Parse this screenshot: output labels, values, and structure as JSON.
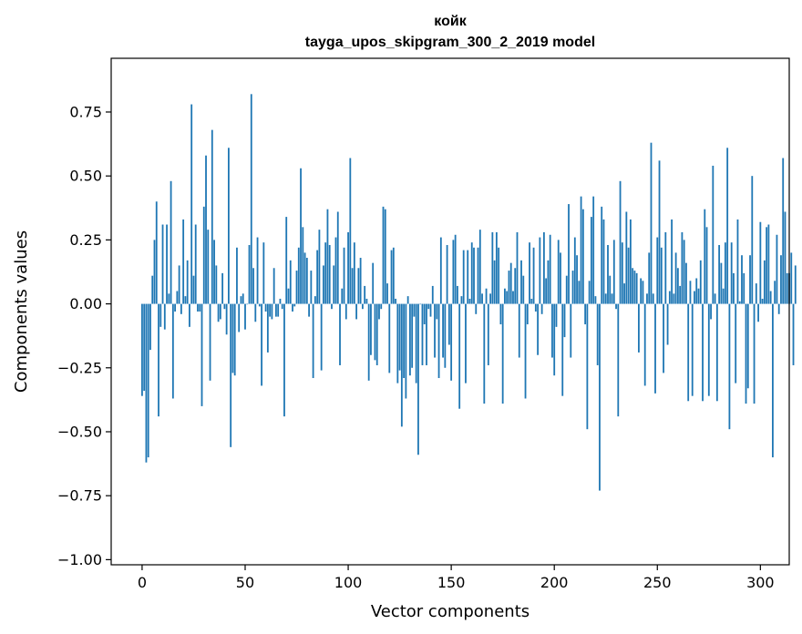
{
  "chart_data": {
    "type": "bar",
    "title": "койк",
    "subtitle": "tayga_upos_skipgram_300_2_2019 model",
    "xlabel": "Vector components",
    "ylabel": "Components values",
    "xlim": [
      -15,
      314
    ],
    "ylim": [
      -1.02,
      0.96
    ],
    "xticks": [
      0,
      50,
      100,
      150,
      200,
      250,
      300
    ],
    "xtick_labels": [
      "0",
      "50",
      "100",
      "150",
      "200",
      "250",
      "300"
    ],
    "yticks": [
      -1.0,
      -0.75,
      -0.5,
      -0.25,
      0.0,
      0.25,
      0.5,
      0.75
    ],
    "ytick_labels": [
      "−1.00",
      "−0.75",
      "−0.50",
      "−0.25",
      "0.00",
      "0.25",
      "0.50",
      "0.75"
    ],
    "grid": false,
    "bar_color": "#1f77b4",
    "values": [
      -0.36,
      -0.34,
      -0.62,
      -0.6,
      -0.18,
      0.11,
      0.25,
      0.4,
      -0.44,
      -0.09,
      0.31,
      -0.1,
      0.31,
      0.04,
      0.48,
      -0.37,
      -0.03,
      0.05,
      0.15,
      -0.04,
      0.33,
      0.03,
      0.17,
      -0.09,
      0.78,
      0.11,
      0.31,
      -0.03,
      -0.03,
      -0.4,
      0.38,
      0.58,
      0.29,
      -0.3,
      0.68,
      0.25,
      0.15,
      -0.07,
      -0.06,
      0.12,
      -0.02,
      -0.12,
      0.61,
      -0.56,
      -0.27,
      -0.28,
      0.22,
      -0.11,
      0.03,
      0.04,
      -0.1,
      0.0,
      0.23,
      0.82,
      0.14,
      -0.07,
      0.26,
      -0.01,
      -0.32,
      0.24,
      -0.03,
      -0.19,
      -0.05,
      -0.06,
      0.14,
      -0.05,
      -0.05,
      0.02,
      -0.02,
      -0.44,
      0.34,
      0.06,
      0.17,
      -0.03,
      -0.01,
      0.13,
      0.22,
      0.53,
      0.3,
      0.2,
      0.18,
      -0.05,
      0.13,
      -0.29,
      0.03,
      0.21,
      0.29,
      -0.26,
      0.15,
      0.24,
      0.37,
      0.23,
      -0.02,
      0.15,
      0.26,
      0.36,
      -0.24,
      0.06,
      0.22,
      -0.06,
      0.28,
      0.57,
      0.14,
      0.24,
      -0.06,
      0.14,
      0.18,
      -0.02,
      0.07,
      0.02,
      -0.3,
      -0.2,
      0.16,
      -0.22,
      -0.24,
      -0.06,
      -0.02,
      0.38,
      0.37,
      0.08,
      -0.27,
      0.21,
      0.22,
      0.02,
      -0.31,
      -0.26,
      -0.48,
      -0.29,
      -0.37,
      0.03,
      -0.28,
      -0.25,
      -0.05,
      -0.31,
      -0.59,
      0.0,
      -0.24,
      -0.08,
      -0.24,
      -0.02,
      -0.05,
      0.07,
      -0.21,
      -0.06,
      -0.29,
      0.26,
      -0.21,
      -0.25,
      0.23,
      -0.16,
      -0.3,
      0.25,
      0.27,
      0.07,
      -0.41,
      0.03,
      0.21,
      -0.31,
      0.21,
      0.02,
      0.24,
      0.22,
      -0.04,
      0.22,
      0.29,
      0.04,
      -0.39,
      0.06,
      -0.24,
      0.04,
      0.28,
      0.17,
      0.28,
      0.22,
      -0.08,
      -0.39,
      0.06,
      0.05,
      0.13,
      0.16,
      0.05,
      0.14,
      0.28,
      -0.21,
      0.17,
      0.11,
      -0.37,
      -0.08,
      0.24,
      0.02,
      0.22,
      -0.03,
      -0.2,
      0.26,
      -0.04,
      0.28,
      0.1,
      0.17,
      0.27,
      -0.21,
      -0.28,
      -0.09,
      0.25,
      0.2,
      -0.36,
      -0.13,
      0.11,
      0.39,
      -0.21,
      0.13,
      0.26,
      0.19,
      0.09,
      0.42,
      0.37,
      -0.08,
      -0.49,
      0.09,
      0.34,
      0.42,
      0.03,
      -0.24,
      -0.73,
      0.38,
      0.33,
      0.04,
      0.23,
      0.11,
      0.04,
      0.25,
      -0.02,
      -0.44,
      0.48,
      0.24,
      0.08,
      0.36,
      0.22,
      0.33,
      0.14,
      0.13,
      0.12,
      -0.19,
      0.1,
      0.09,
      -0.32,
      0.04,
      0.2,
      0.63,
      0.04,
      -0.35,
      0.26,
      0.56,
      0.22,
      -0.27,
      0.28,
      -0.16,
      0.05,
      0.33,
      0.04,
      0.2,
      0.14,
      0.07,
      0.28,
      0.25,
      0.16,
      -0.38,
      0.09,
      -0.36,
      0.05,
      0.1,
      0.06,
      0.17,
      -0.38,
      0.37,
      0.3,
      -0.36,
      -0.06,
      0.54,
      0.04,
      -0.38,
      0.23,
      0.16,
      0.06,
      0.24,
      0.61,
      -0.49,
      0.24,
      0.12,
      -0.31,
      0.33,
      0.01,
      0.19,
      0.12,
      -0.39,
      -0.33,
      0.19,
      0.5,
      -0.39,
      0.08,
      -0.07,
      0.32,
      0.02,
      0.17,
      0.3,
      0.31,
      0.05,
      -0.6,
      0.09,
      0.27,
      -0.04,
      0.19,
      0.57,
      0.36,
      0.12,
      0.12,
      0.2,
      -0.24,
      0.15
    ]
  }
}
